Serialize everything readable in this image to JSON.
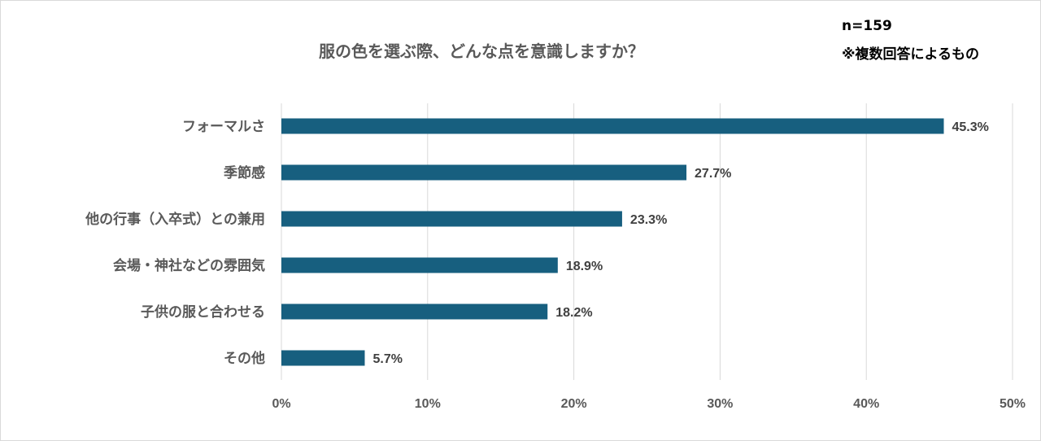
{
  "chart_data": {
    "type": "bar",
    "orientation": "horizontal",
    "title": "服の色を選ぶ際、どんな点を意識しますか？",
    "categories": [
      "フォーマルさ",
      "季節感",
      "他の行事（入卒式）との兼用",
      "会場・神社などの雰囲気",
      "子供の服と合わせる",
      "その他"
    ],
    "values": [
      45.3,
      27.7,
      23.3,
      18.9,
      18.2,
      5.7
    ],
    "value_labels": [
      "45.3%",
      "27.7%",
      "23.3%",
      "18.9%",
      "18.2%",
      "5.7%"
    ],
    "xlim": [
      0,
      50
    ],
    "x_ticks": [
      0,
      10,
      20,
      30,
      40,
      50
    ],
    "x_tick_labels": [
      "0%",
      "10%",
      "20%",
      "30%",
      "40%",
      "50%"
    ],
    "grid": "vertical",
    "legend": "none",
    "bar_color": "#175f7f",
    "grid_color": "#d9d9d9"
  },
  "notes": {
    "sample_size": "n=159",
    "multiple_answers": "※複数回答によるもの"
  }
}
